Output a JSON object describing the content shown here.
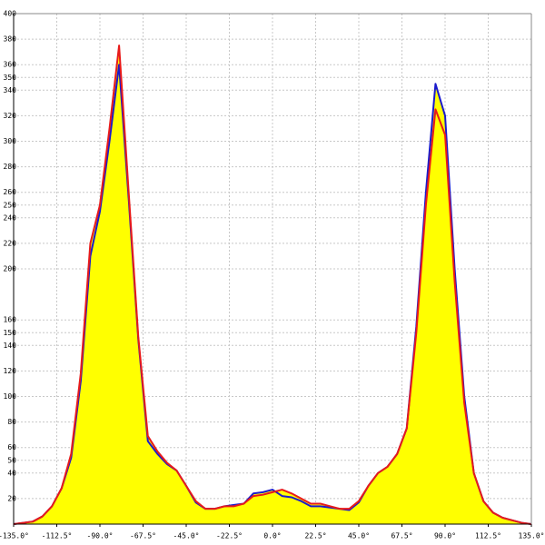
{
  "chart_data": {
    "type": "area",
    "x": [
      -135,
      -130,
      -125,
      -120,
      -115,
      -110,
      -105,
      -100,
      -95,
      -90,
      -85,
      -80,
      -75,
      -70,
      -65,
      -60,
      -55,
      -50,
      -45,
      -40,
      -35,
      -30,
      -25,
      -20,
      -15,
      -10,
      -5,
      0,
      5,
      10,
      15,
      20,
      25,
      30,
      35,
      40,
      45,
      50,
      55,
      60,
      65,
      70,
      75,
      80,
      85,
      90,
      95,
      100,
      105,
      110,
      115,
      120,
      125,
      130,
      135
    ],
    "fill": "#ffff00",
    "series": [
      {
        "color": "#1a1acc",
        "values": [
          0,
          1,
          2,
          6,
          14,
          28,
          52,
          112,
          210,
          245,
          300,
          360,
          255,
          145,
          65,
          55,
          47,
          42,
          30,
          17,
          12,
          12,
          14,
          15,
          16,
          24,
          25,
          27,
          22,
          21,
          18,
          14,
          14,
          13,
          12,
          11,
          17,
          30,
          40,
          45,
          55,
          75,
          155,
          260,
          345,
          320,
          200,
          100,
          40,
          18,
          9,
          5,
          3,
          1,
          0
        ]
      },
      {
        "color": "#e81a1a",
        "values": [
          0,
          1,
          2,
          6,
          14,
          28,
          55,
          118,
          220,
          250,
          310,
          375,
          260,
          147,
          69,
          57,
          48,
          42,
          30,
          18,
          12,
          12,
          14,
          14,
          16,
          22,
          23,
          25,
          27,
          24,
          20,
          16,
          16,
          14,
          12,
          12,
          18,
          30,
          40,
          45,
          55,
          75,
          150,
          250,
          325,
          305,
          190,
          95,
          40,
          18,
          9,
          5,
          3,
          1,
          0
        ]
      }
    ],
    "xlim": [
      -135,
      135
    ],
    "ylim": [
      0,
      400
    ],
    "xticks": [
      {
        "value": -135,
        "label": "-135.0°"
      },
      {
        "value": -112.5,
        "label": "-112.5°"
      },
      {
        "value": -90,
        "label": "-90.0°"
      },
      {
        "value": -67.5,
        "label": "-67.5°"
      },
      {
        "value": -45,
        "label": "-45.0°"
      },
      {
        "value": -22.5,
        "label": "-22.5°"
      },
      {
        "value": 0,
        "label": "0.0°"
      },
      {
        "value": 22.5,
        "label": "22.5°"
      },
      {
        "value": 45,
        "label": "45.0°"
      },
      {
        "value": 67.5,
        "label": "67.5°"
      },
      {
        "value": 90,
        "label": "90.0°"
      },
      {
        "value": 112.5,
        "label": "112.5°"
      },
      {
        "value": 135,
        "label": "135.0°"
      }
    ],
    "yticks": [
      20,
      40,
      50,
      60,
      80,
      100,
      120,
      140,
      150,
      160,
      200,
      220,
      240,
      250,
      260,
      280,
      300,
      320,
      340,
      350,
      360,
      380,
      400
    ],
    "grid": true
  }
}
